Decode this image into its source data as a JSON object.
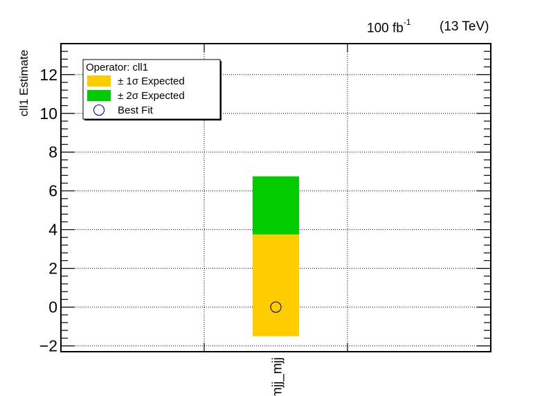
{
  "header": {
    "luminosity_value": "100 fb",
    "luminosity_exponent": "-1",
    "energy": "(13 TeV)"
  },
  "chart_data": {
    "type": "bar",
    "ylabel": "cll1 Estimate",
    "xlabel": "",
    "ylim": [
      -2.3,
      13.6
    ],
    "yticks": [
      "−2",
      "0",
      "2",
      "4",
      "6",
      "8",
      "10",
      "12"
    ],
    "ytick_values": [
      -2,
      0,
      2,
      4,
      6,
      8,
      10,
      12
    ],
    "categories": [
      "mjj_mjj"
    ],
    "grid": true,
    "legend_position": "top-left",
    "legend": {
      "title": "Operator: cll1",
      "entries": [
        {
          "label": "± 1σ Expected",
          "color": "#ffcc00"
        },
        {
          "label": "± 2σ Expected",
          "color": "#00cc00"
        },
        {
          "label": "Best Fit",
          "color": "#0000cc"
        }
      ]
    },
    "series": [
      {
        "label_ref": "one_sigma",
        "low": -1.5,
        "high": 3.75,
        "color": "#ffcc00"
      },
      {
        "label_ref": "two_sigma",
        "low": 3.75,
        "high": 6.75,
        "color": "#00cc00"
      }
    ],
    "best_fit": 0.0
  }
}
